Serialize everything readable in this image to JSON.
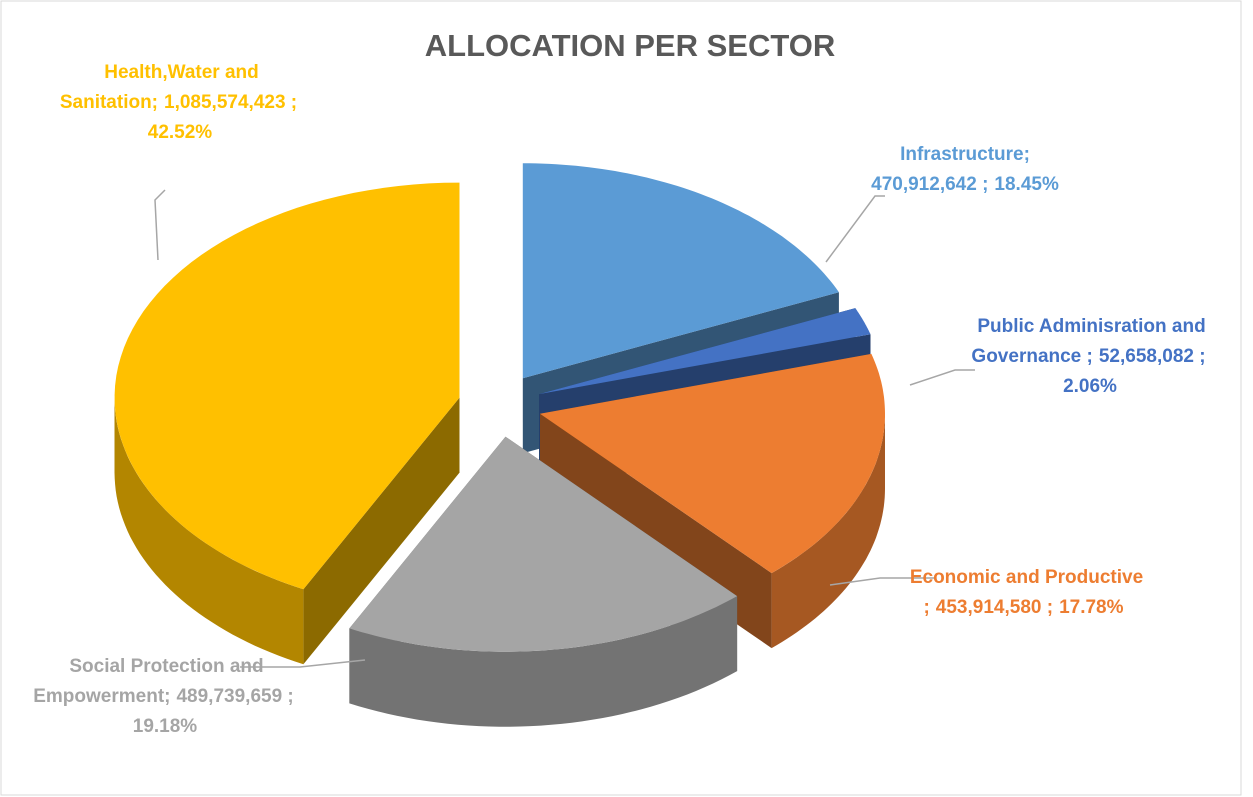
{
  "chart_data": {
    "type": "pie",
    "title": "ALLOCATION PER SECTOR",
    "categories": [
      "Infrastructure;",
      "Public Adminisration and Governance ;",
      "Economic and Productive  ;",
      "Social Protection and Empowerment;",
      "Health,Water and Sanitation;"
    ],
    "values": [
      470912642,
      52658082,
      453914580,
      489739659,
      1085574423
    ],
    "value_labels": [
      "470,912,642 ;",
      "52,658,082 ;",
      "453,914,580 ;",
      "489,739,659 ;",
      "1,085,574,423 ;"
    ],
    "percentages": [
      18.45,
      2.06,
      17.78,
      19.18,
      42.52
    ],
    "percentage_labels": [
      "18.45%",
      "2.06%",
      "17.78%",
      "19.18%",
      "42.52%"
    ],
    "colors": [
      "#5b9bd5",
      "#4472c4",
      "#ed7d31",
      "#a5a5a5",
      "#ffc000"
    ]
  }
}
